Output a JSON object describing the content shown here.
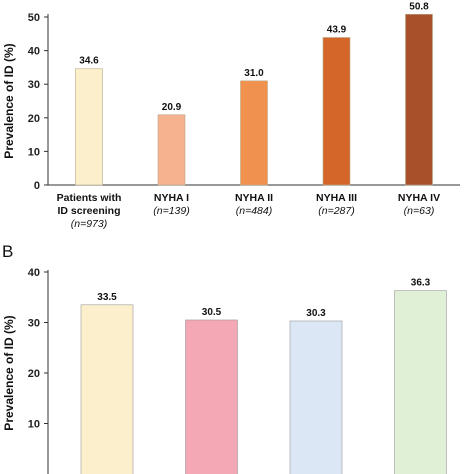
{
  "chart_data": [
    {
      "type": "bar",
      "ylabel": "Prevalence of ID (%)",
      "ylim": [
        0,
        50
      ],
      "yticks": [
        0,
        10,
        20,
        30,
        40,
        50
      ],
      "categories": [
        {
          "label": [
            "Patients with",
            "ID screening"
          ],
          "n": "(n=973)"
        },
        {
          "label": [
            "NYHA I"
          ],
          "n": "(n=139)"
        },
        {
          "label": [
            "NYHA II"
          ],
          "n": "(n=484)"
        },
        {
          "label": [
            "NYHA III"
          ],
          "n": "(n=287)"
        },
        {
          "label": [
            "NYHA IV"
          ],
          "n": "(n=63)"
        }
      ],
      "values": [
        34.6,
        20.9,
        31.0,
        43.9,
        50.8
      ],
      "value_labels": [
        "34.6",
        "20.9",
        "31.0",
        "43.9",
        "50.8"
      ],
      "colors": [
        "#FCEFCC",
        "#F6B18F",
        "#F0924E",
        "#D4662A",
        "#A8502A"
      ],
      "grid": false
    },
    {
      "type": "bar",
      "panel_label": "B",
      "ylabel": "Prevalence of ID (%)",
      "ylim": [
        0,
        40
      ],
      "yticks": [
        10,
        20,
        30,
        40
      ],
      "values": [
        33.5,
        30.5,
        30.3,
        36.3
      ],
      "value_labels": [
        "33.5",
        "30.5",
        "30.3",
        "36.3"
      ],
      "colors": [
        "#FCEFCC",
        "#F4A7B5",
        "#DCE7F5",
        "#DFF0D6"
      ],
      "grid": false
    }
  ]
}
